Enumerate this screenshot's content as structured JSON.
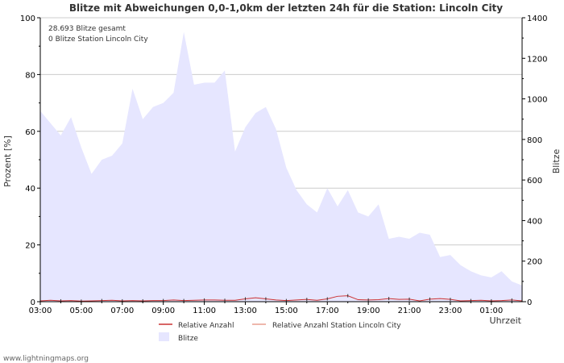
{
  "chart_data": {
    "type": "area",
    "title": "Blitze mit Abweichungen 0,0-1,0km der letzten 24h für die Station: Lincoln City",
    "xlabel": "Uhrzeit",
    "ylabel_left": "Prozent   [%]",
    "ylabel_right": "Blitze",
    "ylim_left": [
      0,
      100
    ],
    "ylim_right": [
      0,
      1400
    ],
    "yticks_left": [
      "0",
      "20",
      "40",
      "60",
      "80",
      "100"
    ],
    "yticks_right": [
      "0",
      "200",
      "400",
      "600",
      "800",
      "1000",
      "1200",
      "1400"
    ],
    "x_tick_labels": [
      "03:00",
      "05:00",
      "07:00",
      "09:00",
      "11:00",
      "13:00",
      "15:00",
      "17:00",
      "19:00",
      "21:00",
      "23:00",
      "01:00"
    ],
    "annotations": [
      "28.693 Blitze gesamt",
      "0 Blitze Station Lincoln City"
    ],
    "series": [
      {
        "name": "Blitze",
        "axis": "right",
        "color": "#e6e6ff",
        "x": [
          0,
          0.5,
          1,
          1.5,
          2,
          2.5,
          3,
          3.5,
          4,
          4.5,
          5,
          5.5,
          6,
          6.5,
          7,
          7.5,
          8,
          8.5,
          9,
          9.5,
          10,
          10.5,
          11,
          11.5,
          12,
          12.5,
          13,
          13.5,
          14,
          14.5,
          15,
          15.5,
          16,
          16.5,
          17,
          17.5,
          18,
          18.5,
          19,
          19.5,
          20,
          20.5,
          21,
          21.5,
          22,
          22.5,
          23,
          23.5
        ],
        "values": [
          940,
          880,
          820,
          910,
          760,
          630,
          700,
          720,
          780,
          1050,
          900,
          960,
          980,
          1030,
          1330,
          1070,
          1080,
          1080,
          1140,
          740,
          860,
          930,
          960,
          850,
          660,
          550,
          480,
          440,
          560,
          470,
          550,
          440,
          420,
          480,
          310,
          320,
          310,
          340,
          330,
          220,
          230,
          180,
          150,
          130,
          120,
          150,
          100,
          80
        ]
      },
      {
        "name": "Relative Anzahl",
        "axis": "left",
        "color": "#cc3333",
        "x": [
          0,
          0.5,
          1,
          1.5,
          2,
          2.5,
          3,
          3.5,
          4,
          4.5,
          5,
          5.5,
          6,
          6.5,
          7,
          7.5,
          8,
          8.5,
          9,
          9.5,
          10,
          10.5,
          11,
          11.5,
          12,
          12.5,
          13,
          13.5,
          14,
          14.5,
          15,
          15.5,
          16,
          16.5,
          17,
          17.5,
          18,
          18.5,
          19,
          19.5,
          20,
          20.5,
          21,
          21.5,
          22,
          22.5,
          23,
          23.5
        ],
        "values": [
          0.3,
          0.5,
          0.3,
          0.4,
          0.2,
          0.3,
          0.4,
          0.5,
          0.3,
          0.4,
          0.3,
          0.4,
          0.4,
          0.6,
          0.4,
          0.5,
          0.6,
          0.6,
          0.5,
          0.5,
          1.0,
          1.4,
          1.0,
          0.6,
          0.4,
          0.6,
          0.8,
          0.5,
          1.0,
          1.9,
          2.1,
          0.7,
          0.6,
          0.7,
          1.1,
          0.8,
          0.9,
          0.3,
          0.9,
          1.1,
          0.8,
          0.3,
          0.4,
          0.5,
          0.3,
          0.4,
          0.6,
          0.3
        ]
      },
      {
        "name": "Relative Anzahl Station Lincoln City",
        "axis": "left",
        "color": "#e8a090",
        "x": [
          0,
          23.5
        ],
        "values": [
          0,
          0
        ]
      }
    ],
    "legend": [
      {
        "label": "Relative Anzahl",
        "type": "line",
        "color": "#cc3333"
      },
      {
        "label": "Relative Anzahl Station Lincoln City",
        "type": "line",
        "color": "#e8a090"
      },
      {
        "label": "Blitze",
        "type": "area",
        "color": "#e6e6ff"
      }
    ]
  },
  "footer": "www.lightningmaps.org"
}
